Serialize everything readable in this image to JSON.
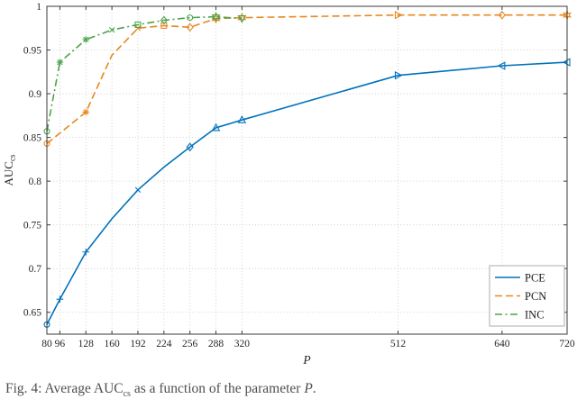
{
  "figure": {
    "caption": {
      "prefix": "Fig. 4: Average ",
      "metric": "AUC",
      "metric_sub": "cs",
      "middle": " as a function of the parameter ",
      "var": "P",
      "suffix": "."
    }
  },
  "chart_data": {
    "type": "line",
    "title": "",
    "xlabel": "P",
    "ylabel": "AUC",
    "ylabel_sub": "cs",
    "xlim": [
      80,
      720
    ],
    "ylim": [
      0.625,
      1.0
    ],
    "xticks": [
      80,
      96,
      128,
      160,
      192,
      224,
      256,
      288,
      320,
      512,
      640,
      720
    ],
    "yticks": [
      0.65,
      0.7,
      0.75,
      0.8,
      0.85,
      0.9,
      0.95,
      1
    ],
    "grid": true,
    "legend_position": "bottom-right",
    "axis_color": "#3b3b3b",
    "grid_color": "#c7c7c7",
    "series": [
      {
        "name": "PCE",
        "color": "#0072BD",
        "style": "solid",
        "x": [
          80,
          96,
          128,
          160,
          192,
          224,
          256,
          288,
          320,
          512,
          640,
          720
        ],
        "y": [
          0.636,
          0.665,
          0.719,
          0.757,
          0.79,
          0.816,
          0.839,
          0.861,
          0.87,
          0.921,
          0.932,
          0.936
        ],
        "markers": [
          "circle",
          "plus",
          "plus",
          "none",
          "x",
          "none",
          "diamond",
          "triangle-up",
          "triangle-up",
          "triangle-right",
          "triangle-left",
          "triangle-left"
        ]
      },
      {
        "name": "PCN",
        "color": "#E8871E",
        "style": "dashed",
        "x": [
          80,
          128,
          160,
          192,
          224,
          256,
          288,
          320,
          512,
          640,
          720
        ],
        "y": [
          0.843,
          0.879,
          0.944,
          0.975,
          0.978,
          0.976,
          0.986,
          0.987,
          0.99,
          0.99,
          0.99
        ],
        "markers": [
          "circle",
          "asterisk",
          "none",
          "x",
          "square",
          "diamond",
          "star",
          "star",
          "triangle-right",
          "diamond",
          "star"
        ]
      },
      {
        "name": "INC",
        "color": "#4DA44D",
        "style": "dashdot",
        "x": [
          80,
          96,
          128,
          160,
          192,
          224,
          256,
          288,
          320
        ],
        "y": [
          0.857,
          0.936,
          0.962,
          0.973,
          0.979,
          0.984,
          0.987,
          0.988,
          0.986
        ],
        "markers": [
          "circle",
          "asterisk",
          "asterisk",
          "x",
          "square",
          "diamond",
          "circle",
          "star",
          "triangle-down"
        ]
      }
    ]
  }
}
